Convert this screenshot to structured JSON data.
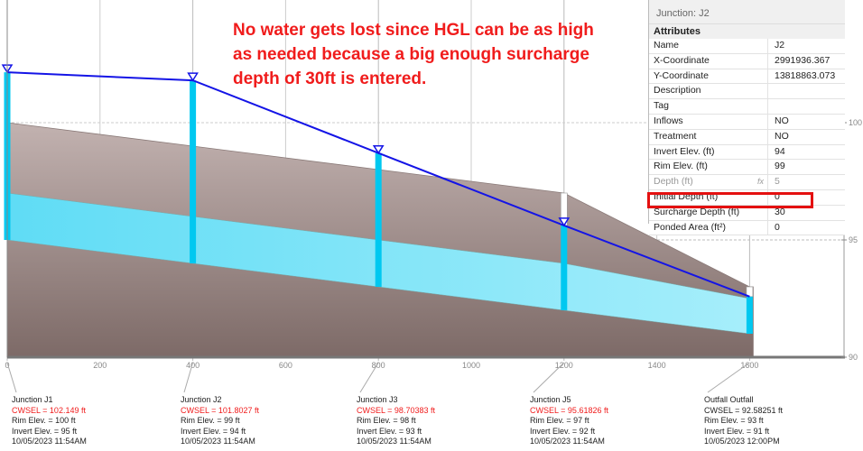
{
  "annotation": "No water gets lost since HGL can be as high as needed because a big enough surcharge depth of 30ft is entered.",
  "properties": {
    "title": "Junction: J2",
    "section": "Attributes",
    "rows": [
      {
        "key": "Name",
        "value": "J2"
      },
      {
        "key": "X-Coordinate",
        "value": "2991936.367"
      },
      {
        "key": "Y-Coordinate",
        "value": "13818863.073"
      },
      {
        "key": "Description",
        "value": ""
      },
      {
        "key": "Tag",
        "value": ""
      },
      {
        "key": "Inflows",
        "value": "NO"
      },
      {
        "key": "Treatment",
        "value": "NO"
      },
      {
        "key": "Invert Elev. (ft)",
        "value": "94"
      },
      {
        "key": "Rim Elev. (ft)",
        "value": "99"
      },
      {
        "key": "Depth (ft)",
        "value": "5",
        "fx": "fx"
      },
      {
        "key": "Initial Depth (ft)",
        "value": "0"
      },
      {
        "key": "Surcharge Depth (ft)",
        "value": "30"
      },
      {
        "key": "Ponded Area (ft²)",
        "value": "0"
      }
    ]
  },
  "chart_data": {
    "type": "profile",
    "x_ticks": [
      "0",
      "200",
      "400",
      "600",
      "800",
      "1000",
      "1200",
      "1400",
      "1600"
    ],
    "y_ticks": [
      "100",
      "95",
      "90"
    ],
    "xlim": [
      0,
      1800
    ],
    "ylim": [
      90,
      102.2
    ],
    "colors": {
      "hgl": "#1414e6",
      "water": "#00c8f0",
      "ground": "#9c8784",
      "highlight": "#e41010"
    },
    "nodes": [
      {
        "name": "Junction J1",
        "station": 0,
        "cwsel_text": "CWSEL = 102.149 ft",
        "cwsel": 102.149,
        "rim_text": "Rim Elev. = 100 ft",
        "rim": 100,
        "invert_text": "Invert Elev. = 95 ft",
        "invert": 95,
        "time": "10/05/2023 11:54AM",
        "flooded": true
      },
      {
        "name": "Junction J2",
        "station": 400,
        "cwsel_text": "CWSEL = 101.8027 ft",
        "cwsel": 101.8027,
        "rim_text": "Rim Elev. = 99 ft",
        "rim": 99,
        "invert_text": "Invert Elev. = 94 ft",
        "invert": 94,
        "time": "10/05/2023 11:54AM",
        "flooded": true
      },
      {
        "name": "Junction J3",
        "station": 800,
        "cwsel_text": "CWSEL = 98.70383 ft",
        "cwsel": 98.70383,
        "rim_text": "Rim Elev. = 98 ft",
        "rim": 98,
        "invert_text": "Invert Elev. = 93 ft",
        "invert": 93,
        "time": "10/05/2023 11:54AM",
        "flooded": true
      },
      {
        "name": "Junction J5",
        "station": 1200,
        "cwsel_text": "CWSEL = 95.61826 ft",
        "cwsel": 95.61826,
        "rim_text": "Rim Elev. = 97 ft",
        "rim": 97,
        "invert_text": "Invert Elev. = 92 ft",
        "invert": 92,
        "time": "10/05/2023 11:54AM",
        "flooded": true
      },
      {
        "name": "Outfall Outfall",
        "station": 1600,
        "cwsel_text": "CWSEL = 92.58251 ft",
        "cwsel": 92.58251,
        "rim_text": "Rim Elev. = 93 ft",
        "rim": 93,
        "invert_text": "Invert Elev. = 91 ft",
        "invert": 91,
        "time": "10/05/2023 12:00PM",
        "flooded": false
      }
    ],
    "pipe_crown": [
      97,
      96,
      95,
      94,
      92.5
    ]
  }
}
